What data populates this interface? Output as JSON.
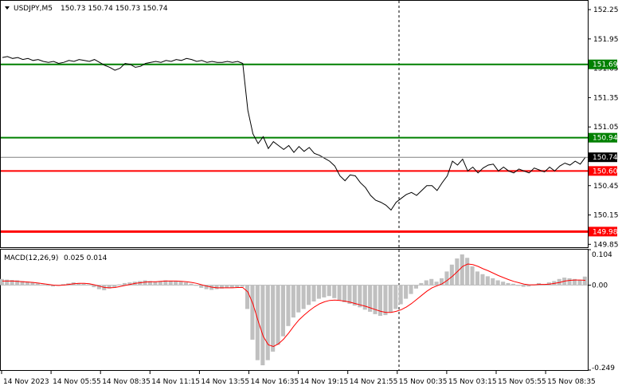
{
  "header": {
    "symbol": "USDJPY,M5",
    "ohlc": "150.73 150.74 150.73 150.74"
  },
  "macd_header": {
    "title": "MACD(12,26,9)",
    "values": "0.025 0.014"
  },
  "colors": {
    "price_line": "#000000",
    "support": "#ff0000",
    "resistance": "#008000",
    "histogram": "#c0c0c0",
    "signal": "#ff0000",
    "current": "#000000",
    "grid": "#000000"
  },
  "chart_data": {
    "type": "line",
    "price_axis": {
      "range": [
        149.82,
        152.34
      ],
      "ticks": [
        "152.25",
        "151.95",
        "151.65",
        "151.35",
        "151.05",
        "150.45",
        "150.15",
        "149.85"
      ]
    },
    "price_levels": [
      {
        "label": "151.69",
        "value": 151.69,
        "color": "#008000"
      },
      {
        "label": "150.94",
        "value": 150.94,
        "color": "#008000"
      },
      {
        "label": "150.60",
        "value": 150.6,
        "color": "#ff0000"
      },
      {
        "label": "149.98",
        "value": 149.98,
        "color": "#ff0000"
      }
    ],
    "current_price": {
      "label": "150.74",
      "value": 150.74
    },
    "price": [
      151.76,
      151.77,
      151.75,
      151.76,
      151.74,
      151.75,
      151.73,
      151.74,
      151.72,
      151.71,
      151.72,
      151.7,
      151.71,
      151.73,
      151.72,
      151.74,
      151.73,
      151.72,
      151.74,
      151.71,
      151.68,
      151.66,
      151.63,
      151.65,
      151.7,
      151.69,
      151.66,
      151.67,
      151.7,
      151.71,
      151.72,
      151.71,
      151.73,
      151.72,
      151.74,
      151.73,
      151.75,
      151.74,
      151.72,
      151.73,
      151.71,
      151.72,
      151.71,
      151.71,
      151.72,
      151.71,
      151.72,
      151.7,
      151.22,
      150.98,
      150.88,
      150.95,
      150.83,
      150.9,
      150.86,
      150.82,
      150.86,
      150.79,
      150.85,
      150.8,
      150.84,
      150.78,
      150.76,
      150.73,
      150.7,
      150.65,
      150.55,
      150.5,
      150.56,
      150.55,
      150.48,
      150.43,
      150.35,
      150.3,
      150.28,
      150.25,
      150.2,
      150.28,
      150.32,
      150.36,
      150.38,
      150.35,
      150.4,
      150.45,
      150.45,
      150.4,
      150.48,
      150.55,
      150.7,
      150.66,
      150.72,
      150.6,
      150.64,
      150.58,
      150.63,
      150.66,
      150.67,
      150.6,
      150.64,
      150.6,
      150.58,
      150.62,
      150.6,
      150.58,
      150.63,
      150.61,
      150.59,
      150.64,
      150.6,
      150.65,
      150.68,
      150.66,
      150.7,
      150.67,
      150.74
    ],
    "macd_axis": {
      "range": [
        -0.249,
        0.104
      ],
      "ticks": [
        "0.104",
        "0.00",
        "-0.249"
      ]
    },
    "macd_histogram": [
      0.018,
      0.016,
      0.015,
      0.014,
      0.012,
      0.01,
      0.008,
      0.005,
      0.002,
      -0.002,
      -0.004,
      -0.002,
      0.003,
      0.005,
      0.008,
      0.006,
      0.004,
      0.002,
      -0.006,
      -0.012,
      -0.015,
      -0.01,
      -0.006,
      0.002,
      0.006,
      0.008,
      0.01,
      0.012,
      0.014,
      0.012,
      0.01,
      0.012,
      0.014,
      0.013,
      0.011,
      0.01,
      0.008,
      0.004,
      -0.002,
      -0.008,
      -0.012,
      -0.014,
      -0.012,
      -0.01,
      -0.008,
      -0.008,
      -0.006,
      -0.005,
      -0.07,
      -0.16,
      -0.22,
      -0.235,
      -0.22,
      -0.195,
      -0.175,
      -0.15,
      -0.12,
      -0.095,
      -0.08,
      -0.07,
      -0.058,
      -0.048,
      -0.04,
      -0.036,
      -0.032,
      -0.038,
      -0.044,
      -0.05,
      -0.055,
      -0.06,
      -0.065,
      -0.072,
      -0.078,
      -0.085,
      -0.09,
      -0.088,
      -0.08,
      -0.07,
      -0.056,
      -0.04,
      -0.026,
      -0.01,
      0.006,
      0.014,
      0.018,
      0.01,
      0.02,
      0.04,
      0.06,
      0.078,
      0.09,
      0.08,
      0.055,
      0.04,
      0.032,
      0.026,
      0.02,
      0.014,
      0.01,
      0.006,
      0.004,
      -0.002,
      -0.005,
      -0.004,
      0.002,
      0.006,
      0.002,
      0.008,
      0.012,
      0.018,
      0.022,
      0.02,
      0.018,
      0.014,
      0.025
    ],
    "macd_signal": [
      0.012,
      0.012,
      0.012,
      0.011,
      0.01,
      0.009,
      0.008,
      0.006,
      0.004,
      0.002,
      0.0,
      -0.001,
      0.0,
      0.002,
      0.004,
      0.005,
      0.005,
      0.004,
      0.001,
      -0.003,
      -0.007,
      -0.008,
      -0.007,
      -0.004,
      -0.001,
      0.002,
      0.005,
      0.007,
      0.009,
      0.01,
      0.01,
      0.011,
      0.012,
      0.012,
      0.012,
      0.011,
      0.01,
      0.008,
      0.005,
      0.001,
      -0.003,
      -0.006,
      -0.008,
      -0.008,
      -0.008,
      -0.008,
      -0.007,
      -0.007,
      -0.02,
      -0.055,
      -0.105,
      -0.15,
      -0.175,
      -0.18,
      -0.172,
      -0.158,
      -0.14,
      -0.12,
      -0.102,
      -0.088,
      -0.075,
      -0.064,
      -0.055,
      -0.049,
      -0.045,
      -0.044,
      -0.045,
      -0.047,
      -0.05,
      -0.054,
      -0.058,
      -0.062,
      -0.067,
      -0.072,
      -0.077,
      -0.08,
      -0.08,
      -0.077,
      -0.072,
      -0.064,
      -0.054,
      -0.042,
      -0.03,
      -0.018,
      -0.008,
      -0.002,
      0.004,
      0.014,
      0.026,
      0.04,
      0.055,
      0.062,
      0.06,
      0.055,
      0.048,
      0.042,
      0.035,
      0.028,
      0.022,
      0.016,
      0.011,
      0.007,
      0.003,
      0.001,
      0.001,
      0.002,
      0.002,
      0.003,
      0.005,
      0.008,
      0.012,
      0.014,
      0.015,
      0.015,
      0.014
    ],
    "x_ticks": [
      "14 Nov 2023",
      "14 Nov 05:55",
      "14 Nov 08:35",
      "14 Nov 11:15",
      "14 Nov 13:55",
      "14 Nov 16:35",
      "14 Nov 19:15",
      "14 Nov 21:55",
      "15 Nov 00:35",
      "15 Nov 03:15",
      "15 Nov 05:55",
      "15 Nov 08:35"
    ]
  }
}
